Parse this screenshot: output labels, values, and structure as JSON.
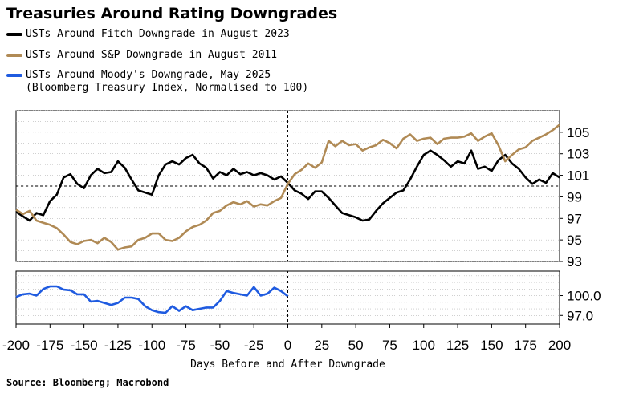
{
  "chart_data": [
    {
      "type": "line",
      "title": "Treasuries Around Rating Downgrades",
      "xlabel": "Days Before and After Downgrade",
      "ylabel": "",
      "xlim": [
        -200,
        200
      ],
      "ylim": [
        93,
        107
      ],
      "xticks": [
        -200,
        -175,
        -150,
        -125,
        -100,
        -75,
        -50,
        -25,
        0,
        25,
        50,
        75,
        100,
        125,
        150,
        175,
        200
      ],
      "yticks": [
        93,
        95,
        97,
        99,
        101,
        103,
        105
      ],
      "reference_line": {
        "y": 100,
        "style": "dashed"
      },
      "vertical_marker": {
        "x": 0,
        "style": "dashed"
      },
      "grid": true,
      "legend": "top-left",
      "series": [
        {
          "name": "USTs Around Fitch Downgrade in August 2023",
          "color": "#000000",
          "x": [
            -200,
            -195,
            -190,
            -185,
            -180,
            -175,
            -170,
            -165,
            -160,
            -155,
            -150,
            -145,
            -140,
            -135,
            -130,
            -125,
            -120,
            -115,
            -110,
            -105,
            -100,
            -95,
            -90,
            -85,
            -80,
            -75,
            -70,
            -65,
            -60,
            -55,
            -50,
            -45,
            -40,
            -35,
            -30,
            -25,
            -20,
            -15,
            -10,
            -5,
            0,
            5,
            10,
            15,
            20,
            25,
            30,
            35,
            40,
            45,
            50,
            55,
            60,
            65,
            70,
            75,
            80,
            85,
            90,
            95,
            100,
            105,
            110,
            115,
            120,
            125,
            130,
            135,
            140,
            145,
            150,
            155,
            160,
            165,
            170,
            175,
            180,
            185,
            190,
            195,
            200
          ],
          "values": [
            97.6,
            97.2,
            96.8,
            97.5,
            97.3,
            98.6,
            99.2,
            100.8,
            101.1,
            100.2,
            99.8,
            101.0,
            101.6,
            101.2,
            101.3,
            102.3,
            101.7,
            100.6,
            99.6,
            99.4,
            99.2,
            101.0,
            102.0,
            102.3,
            102.0,
            102.6,
            102.9,
            102.1,
            101.7,
            100.7,
            101.3,
            101.0,
            101.6,
            101.1,
            101.3,
            101.0,
            101.2,
            101.0,
            100.6,
            100.9,
            100.3,
            99.6,
            99.3,
            98.8,
            99.5,
            99.5,
            98.9,
            98.2,
            97.5,
            97.3,
            97.1,
            96.8,
            96.9,
            97.7,
            98.4,
            98.9,
            99.4,
            99.6,
            100.6,
            101.8,
            102.9,
            103.3,
            102.9,
            102.4,
            101.8,
            102.3,
            102.1,
            103.3,
            101.6,
            101.8,
            101.4,
            102.4,
            102.9,
            102.1,
            101.6,
            100.8,
            100.2,
            100.6,
            100.3,
            101.2,
            100.8
          ]
        },
        {
          "name": "USTs Around S&P Downgrade in August 2011",
          "color": "#b08a55",
          "x": [
            -200,
            -195,
            -190,
            -185,
            -180,
            -175,
            -170,
            -165,
            -160,
            -155,
            -150,
            -145,
            -140,
            -135,
            -130,
            -125,
            -120,
            -115,
            -110,
            -105,
            -100,
            -95,
            -90,
            -85,
            -80,
            -75,
            -70,
            -65,
            -60,
            -55,
            -50,
            -45,
            -40,
            -35,
            -30,
            -25,
            -20,
            -15,
            -10,
            -5,
            0,
            5,
            10,
            15,
            20,
            25,
            30,
            35,
            40,
            45,
            50,
            55,
            60,
            65,
            70,
            75,
            80,
            85,
            90,
            95,
            100,
            105,
            110,
            115,
            120,
            125,
            130,
            135,
            140,
            145,
            150,
            155,
            160,
            165,
            170,
            175,
            180,
            185,
            190,
            195,
            200
          ],
          "values": [
            97.8,
            97.4,
            97.7,
            96.8,
            96.6,
            96.4,
            96.1,
            95.5,
            94.8,
            94.6,
            94.9,
            95.0,
            94.7,
            95.2,
            94.8,
            94.1,
            94.3,
            94.4,
            95.0,
            95.2,
            95.6,
            95.6,
            95.0,
            94.9,
            95.2,
            95.8,
            96.2,
            96.4,
            96.8,
            97.5,
            97.7,
            98.2,
            98.5,
            98.3,
            98.6,
            98.1,
            98.3,
            98.2,
            98.6,
            98.9,
            100.2,
            101.1,
            101.5,
            102.1,
            101.7,
            102.2,
            104.2,
            103.7,
            104.2,
            103.8,
            103.9,
            103.3,
            103.6,
            103.8,
            104.3,
            104.0,
            103.5,
            104.4,
            104.8,
            104.2,
            104.4,
            104.5,
            103.9,
            104.4,
            104.5,
            104.5,
            104.6,
            104.9,
            104.2,
            104.6,
            104.9,
            103.8,
            102.3,
            102.9,
            103.4,
            103.6,
            104.2,
            104.5,
            104.8,
            105.2,
            105.7
          ]
        }
      ]
    },
    {
      "type": "line",
      "title": "",
      "ylabel": "",
      "xlim": [
        -200,
        200
      ],
      "ylim": [
        95.7,
        103.7
      ],
      "yticks": [
        97.0,
        100.0
      ],
      "ytick_labels": [
        "97.0",
        "100.0"
      ],
      "grid": true,
      "series": [
        {
          "name": "USTs Around Moody's Downgrade, May 2025",
          "color": "#1f5be0",
          "note": "Bloomberg Treasury Index, Normalised to 100",
          "x": [
            -200,
            -195,
            -190,
            -185,
            -180,
            -175,
            -170,
            -165,
            -160,
            -155,
            -150,
            -145,
            -140,
            -135,
            -130,
            -125,
            -120,
            -115,
            -110,
            -105,
            -100,
            -95,
            -90,
            -85,
            -80,
            -75,
            -70,
            -65,
            -60,
            -55,
            -50,
            -45,
            -40,
            -35,
            -30,
            -25,
            -20,
            -15,
            -10,
            -5,
            0
          ],
          "values": [
            99.8,
            100.2,
            100.3,
            100.0,
            101.0,
            101.4,
            101.4,
            100.9,
            100.8,
            100.2,
            100.2,
            99.1,
            99.2,
            98.9,
            98.6,
            98.9,
            99.7,
            99.7,
            99.5,
            98.4,
            97.8,
            97.5,
            97.4,
            98.4,
            97.7,
            98.4,
            97.8,
            98.0,
            98.2,
            98.2,
            99.2,
            100.7,
            100.4,
            100.2,
            100.0,
            101.3,
            100.0,
            100.3,
            101.2,
            100.7,
            99.9
          ]
        }
      ]
    }
  ],
  "legend": {
    "item1": "USTs Around Fitch Downgrade in August 2023",
    "item2": "USTs Around S&P Downgrade in August 2011",
    "item3_line1": "USTs Around Moody's Downgrade, May 2025",
    "item3_line2": "(Bloomberg Treasury Index, Normalised to 100)"
  },
  "footer": {
    "source": "Source: Bloomberg; Macrobond"
  }
}
